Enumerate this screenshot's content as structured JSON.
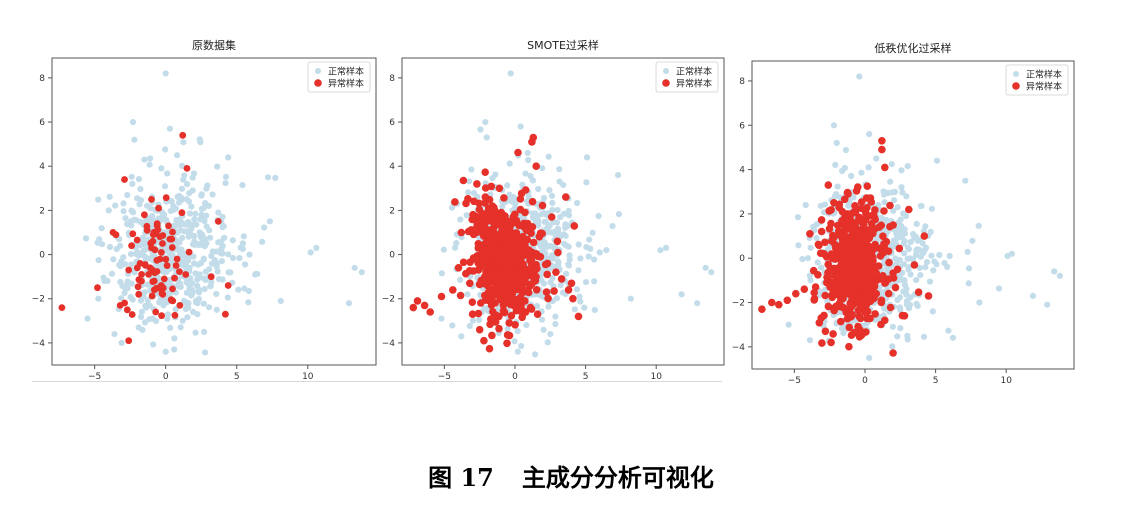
{
  "caption": {
    "label": "图 17",
    "text": "主成分分析可视化"
  },
  "colors": {
    "normal": "#c3dcea",
    "anomaly": "#e5312a",
    "axis": "#444444"
  },
  "chart_data": [
    {
      "type": "scatter",
      "title": "原数据集",
      "xlim": [
        -8,
        14.8
      ],
      "ylim": [
        -5,
        8.9
      ],
      "xticks": [
        -5,
        0,
        5,
        10
      ],
      "yticks": [
        -4,
        -2,
        0,
        2,
        4,
        6,
        8
      ],
      "legend": {
        "position": "top-right",
        "entries": [
          "正常样本",
          "异常样本"
        ]
      },
      "series": [
        {
          "name": "正常样本",
          "color": "#c3dcea",
          "x": [
            0.0,
            -2.3,
            0.3,
            -2.2,
            0.8,
            -1.5,
            -0.3,
            4.4,
            1.9,
            7.2,
            10.6,
            10.2,
            13.8,
            13.3,
            12.9,
            -4.0,
            3.7,
            0.0,
            -5.5,
            -3.6,
            -3.1,
            2.7,
            1.2,
            5.9,
            8.1,
            -1.9,
            0.6
          ],
          "y": [
            8.2,
            6.0,
            5.7,
            5.2,
            4.5,
            4.3,
            3.9,
            4.4,
            2.9,
            3.5,
            0.3,
            0.1,
            -0.8,
            -0.6,
            -2.2,
            2.0,
            1.9,
            -4.4,
            -2.9,
            -3.6,
            -4.0,
            -3.5,
            -3.0,
            0.0,
            -2.1,
            -3.3,
            -4.3
          ]
        },
        {
          "name": "异常样本",
          "color": "#e5312a",
          "x": [
            1.2,
            1.5,
            3.7,
            4.4,
            3.2,
            4.2,
            -7.3,
            -4.8,
            -2.7,
            -3.2,
            -2.6,
            -2.9,
            -3.5,
            -1.0,
            -0.5,
            -0.6,
            -1.5,
            -1.3,
            -2.4,
            -1.0,
            -0.3,
            0.3,
            0.8,
            0.1,
            -2.0,
            -1.1,
            -0.1,
            -1.7,
            -0.8,
            -0.2,
            0.5,
            1.0,
            -0.7,
            -1.2,
            -2.6,
            -0.4,
            -0.9,
            0.2,
            -1.8,
            -0.3
          ],
          "y": [
            5.4,
            3.9,
            1.5,
            -1.4,
            -1.0,
            -2.7,
            -2.4,
            -1.5,
            -2.5,
            -2.3,
            -3.9,
            3.4,
            0.9,
            2.5,
            2.1,
            1.4,
            1.8,
            1.1,
            0.4,
            0.3,
            0.1,
            0.7,
            -0.2,
            -0.5,
            -0.6,
            -0.6,
            -1.1,
            -1.2,
            -1.6,
            -1.8,
            -2.1,
            -2.3,
            -2.6,
            -0.9,
            -0.7,
            -0.2,
            0.6,
            1.3,
            -0.4,
            -1.4
          ]
        }
      ]
    },
    {
      "type": "scatter",
      "title": "SMOTE过采样",
      "xlim": [
        -8,
        14.8
      ],
      "ylim": [
        -5,
        8.9
      ],
      "xticks": [
        -5,
        0,
        5,
        10
      ],
      "yticks": [
        -4,
        -2,
        0,
        2,
        4,
        6,
        8
      ],
      "legend": {
        "position": "top-right",
        "entries": [
          "正常样本",
          "异常样本"
        ]
      },
      "series": [
        {
          "name": "正常样本",
          "color": "#c3dcea",
          "x": [
            -0.3,
            -2.1,
            0.4,
            -2.0,
            0.9,
            5.1,
            7.3,
            10.7,
            10.3,
            13.9,
            13.5,
            12.9,
            11.8,
            8.2,
            6.0,
            -4.1,
            -5.2,
            0.2,
            -3.8,
            2.5,
            4.9,
            3.2
          ],
          "y": [
            8.2,
            6.0,
            5.8,
            5.3,
            4.6,
            4.4,
            3.6,
            0.3,
            0.2,
            -0.8,
            -0.6,
            -2.2,
            -1.8,
            -2.0,
            0.1,
            2.3,
            -2.9,
            -4.4,
            -3.7,
            -3.6,
            -2.4,
            1.7
          ]
        },
        {
          "name": "异常样本",
          "color": "#e5312a",
          "x": [
            1.3,
            1.2,
            1.5,
            3.6,
            4.2,
            4.0,
            4.5,
            -7.2,
            -6.9,
            -6.4,
            -6.0,
            -5.2,
            -4.4,
            -3.2,
            -3.0,
            -2.5,
            -2.2,
            -2.7,
            -3.8,
            -4.0,
            -2.1,
            -1.6,
            -1.2,
            -0.6,
            0.0,
            0.5,
            1.0,
            1.8,
            2.3,
            2.9,
            3.3,
            3.8,
            4.1,
            1.1,
            0.7,
            -0.2,
            -0.9,
            -1.4,
            -1.8,
            -2.3,
            -0.4,
            0.3,
            -0.7,
            0.9,
            -1.1,
            2.6,
            3.0,
            1.6,
            -2.6,
            -1.9
          ],
          "y": [
            5.3,
            5.1,
            4.0,
            2.6,
            1.3,
            -1.3,
            -2.8,
            -2.4,
            -2.1,
            -2.3,
            -2.6,
            -1.9,
            -1.6,
            -1.3,
            -2.7,
            -3.4,
            -3.9,
            3.2,
            1.0,
            -0.6,
            2.6,
            2.2,
            1.8,
            1.2,
            0.8,
            0.5,
            0.2,
            -0.1,
            -0.4,
            -0.8,
            -1.1,
            -1.6,
            -2.0,
            -2.4,
            -2.1,
            -1.8,
            -1.4,
            -1.0,
            -0.6,
            -0.2,
            -0.5,
            -0.9,
            0.4,
            1.4,
            3.0,
            1.7,
            0.6,
            -2.7,
            0.3,
            -1.2
          ]
        }
      ]
    },
    {
      "type": "scatter",
      "title": "低秩优化过采样",
      "xlim": [
        -8,
        14.8
      ],
      "ylim": [
        -5,
        8.9
      ],
      "xticks": [
        -5,
        0,
        5,
        10
      ],
      "yticks": [
        -4,
        -2,
        0,
        2,
        4,
        6,
        8
      ],
      "legend": {
        "position": "top-right",
        "entries": [
          "正常样本",
          "异常样本"
        ]
      },
      "series": [
        {
          "name": "正常样本",
          "color": "#c3dcea",
          "x": [
            -0.4,
            -2.2,
            0.3,
            -2.0,
            0.8,
            5.1,
            7.1,
            10.4,
            10.1,
            13.8,
            13.4,
            12.9,
            11.9,
            8.1,
            6.0,
            -4.2,
            -5.4,
            0.3,
            -3.9,
            3.0,
            4.8,
            2.9
          ],
          "y": [
            8.2,
            6.0,
            5.6,
            5.2,
            4.5,
            4.4,
            3.5,
            0.2,
            0.1,
            -0.8,
            -0.6,
            -2.1,
            -1.7,
            -2.0,
            0.1,
            2.4,
            -3.0,
            -4.5,
            -3.7,
            -3.5,
            -2.4,
            1.9
          ]
        },
        {
          "name": "异常样本",
          "color": "#e5312a",
          "x": [
            1.2,
            1.2,
            1.4,
            3.1,
            4.2,
            4.5,
            2.8,
            -7.3,
            -6.6,
            -6.1,
            -5.5,
            -4.9,
            -4.3,
            -3.5,
            -3.1,
            -2.8,
            -2.4,
            -2.6,
            -3.9,
            -2.2,
            -1.6,
            -1.1,
            -0.6,
            0.1,
            0.6,
            1.1,
            1.7,
            2.3,
            0.8,
            0.3,
            -0.3,
            -0.9,
            -1.4,
            -2.0,
            -0.5,
            0.4,
            -0.8,
            1.0,
            -1.2,
            2.0,
            3.5,
            1.4,
            -2.9,
            -1.7,
            -0.2,
            0.7
          ],
          "y": [
            5.3,
            4.9,
            4.1,
            2.2,
            1.0,
            -1.7,
            -2.6,
            -2.3,
            -2.0,
            -2.1,
            -1.9,
            -1.6,
            -1.4,
            -1.3,
            -2.7,
            -3.3,
            -3.8,
            3.3,
            1.1,
            2.5,
            2.1,
            1.7,
            1.2,
            0.8,
            0.4,
            0.1,
            -0.2,
            -0.5,
            -1.6,
            -1.9,
            -2.2,
            -1.8,
            -1.2,
            -0.8,
            -0.4,
            -1.0,
            0.5,
            1.4,
            2.9,
            1.5,
            -0.3,
            -2.8,
            0.2,
            -1.1,
            0.3,
            -0.7
          ]
        }
      ]
    }
  ]
}
